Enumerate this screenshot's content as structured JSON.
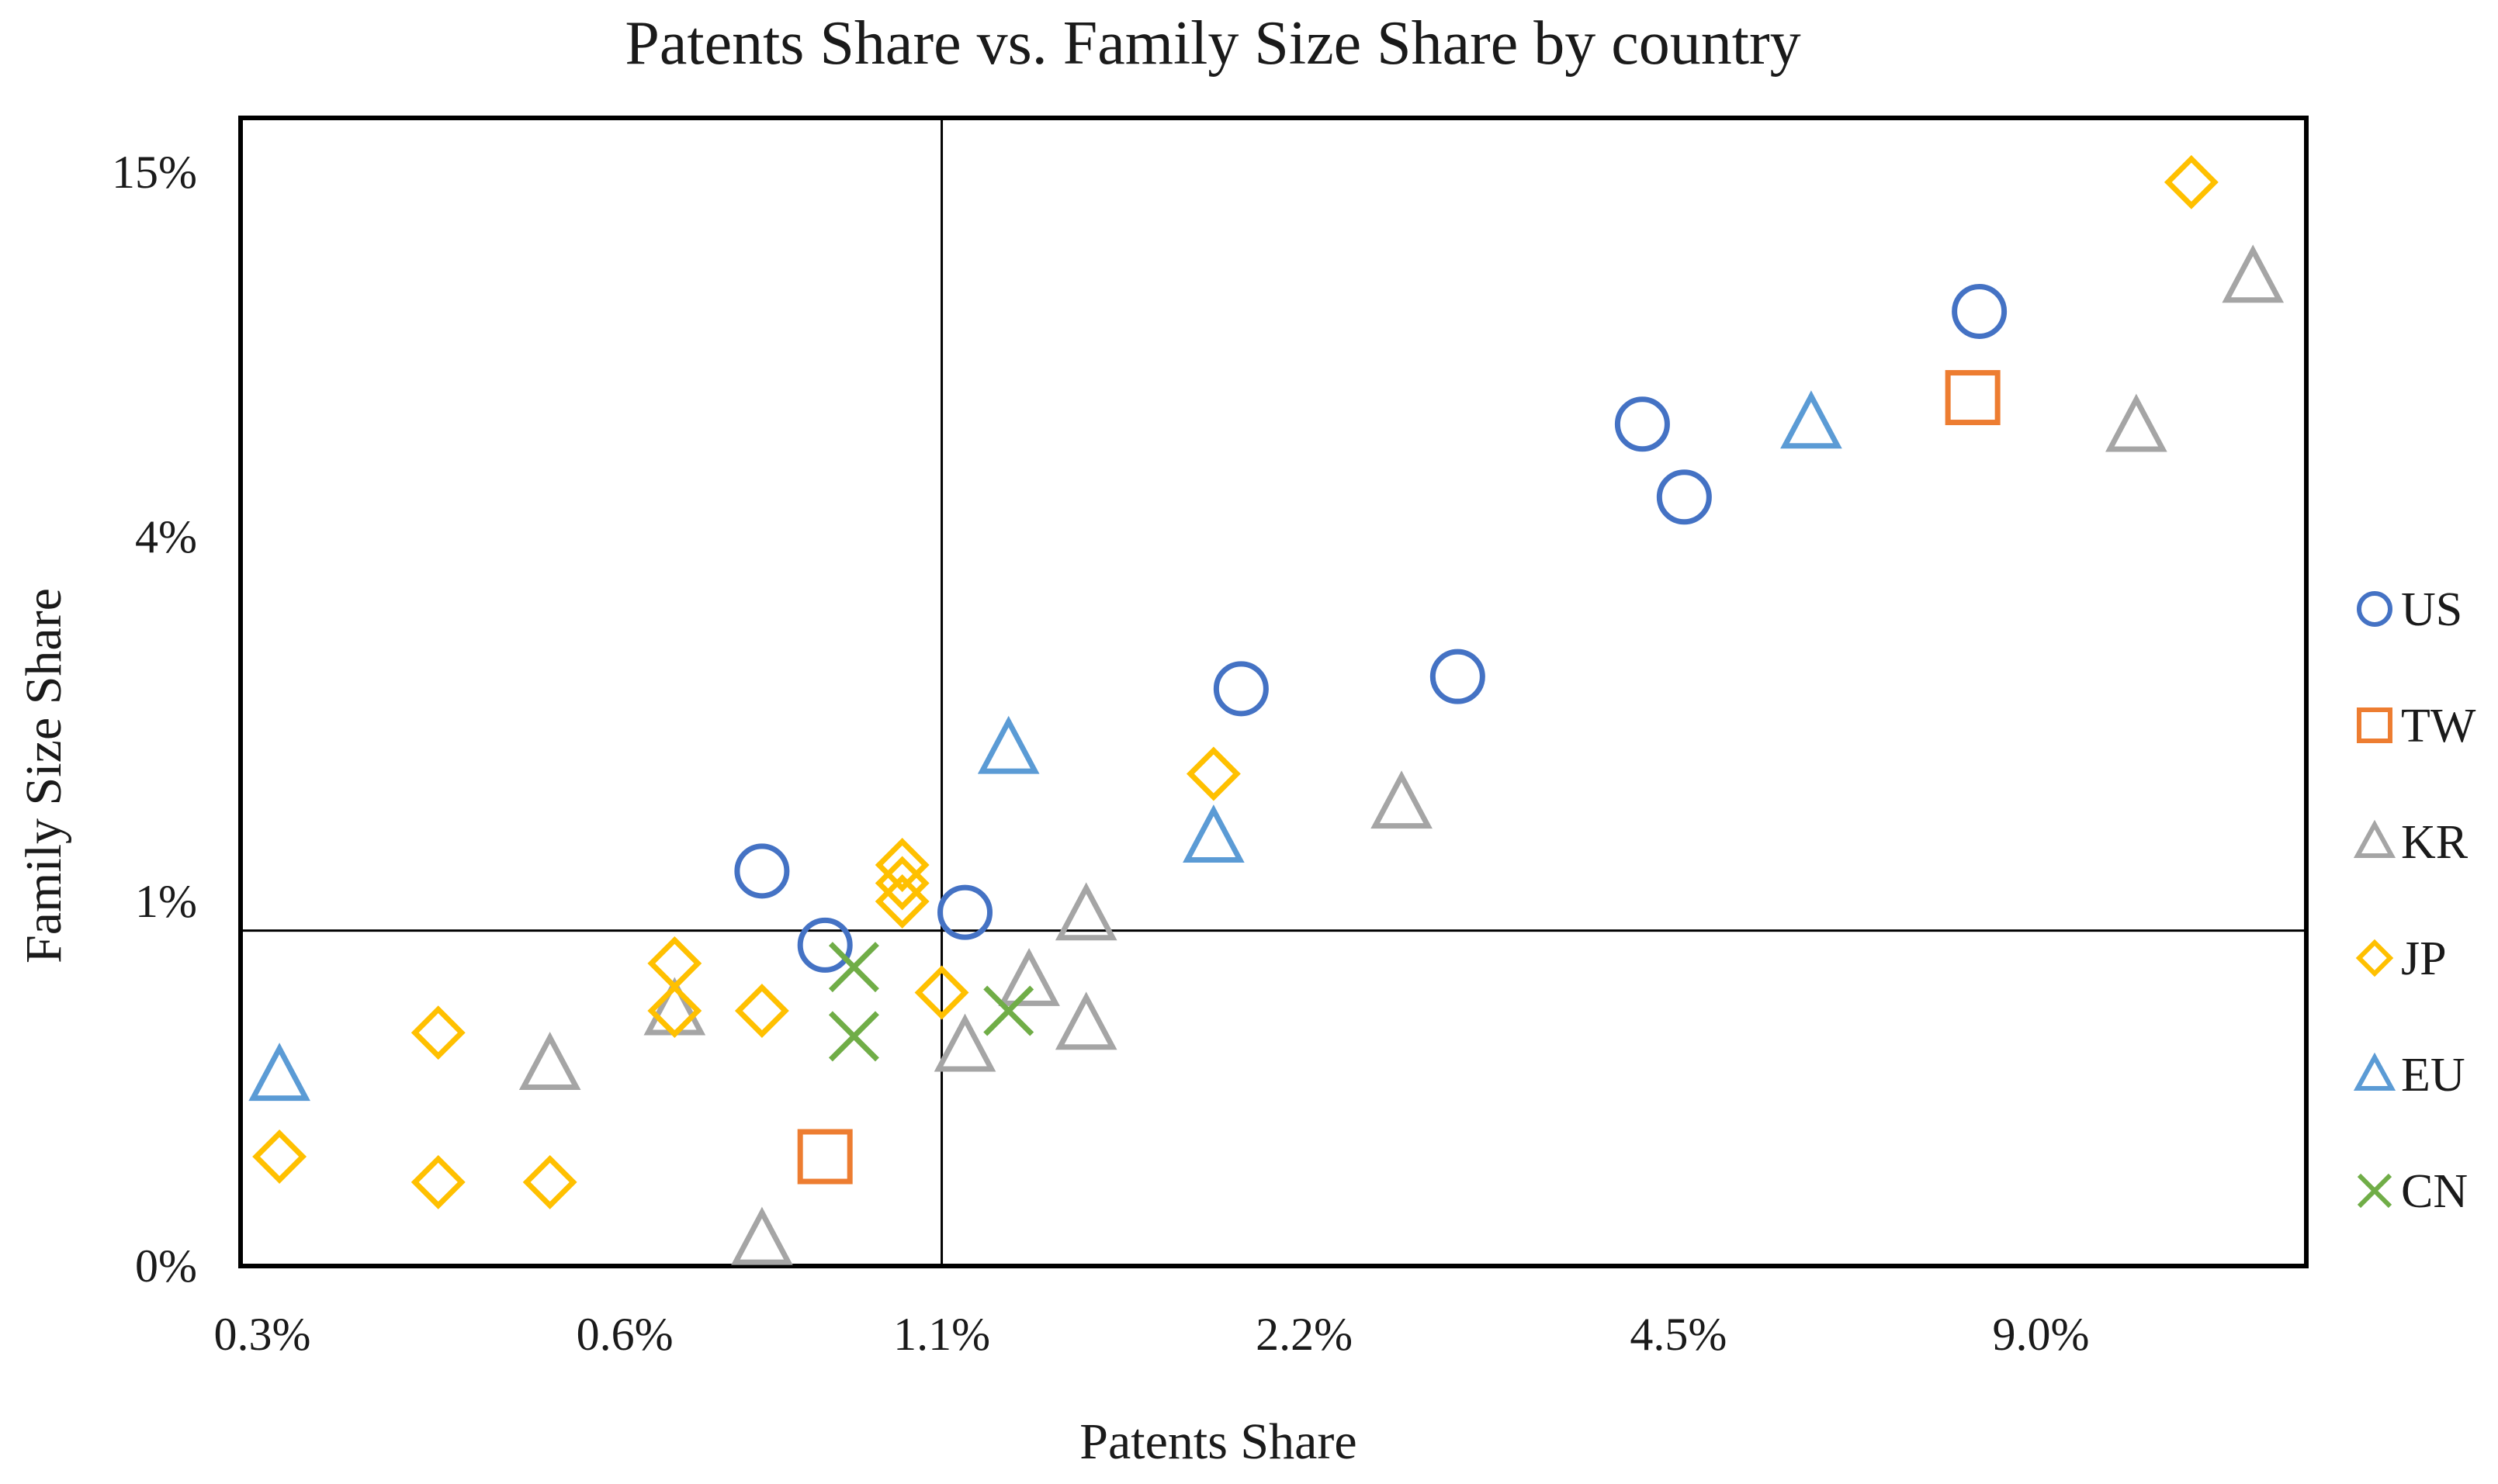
{
  "chart_data": {
    "type": "scatter",
    "title": "Patents Share vs. Family Size Share by country",
    "xlabel": "Patents Share",
    "ylabel": "Family Size Share",
    "x_scale": "log2",
    "xlim": [
      0.3,
      14.0
    ],
    "x_ticks": [
      0.3,
      0.6,
      1.1,
      2.2,
      4.5,
      9.0
    ],
    "x_tick_labels": [
      "0.3%",
      "0.6%",
      "1.1%",
      "2.2%",
      "4.5%",
      "9.0%"
    ],
    "y_ticks": [
      0,
      1,
      4,
      15
    ],
    "y_tick_labels": [
      "0%",
      "1%",
      "4%",
      "15%"
    ],
    "y_band_fractions": [
      0.5,
      0.75,
      1,
      0.25,
      0.5,
      0.75
    ],
    "reference_lines": {
      "x": 1.1,
      "y": 0.92
    },
    "legend_position": "right",
    "series": [
      {
        "name": "US",
        "marker": "circle",
        "color": "#4472C4",
        "points": [
          [
            0.78,
            1.25
          ],
          [
            0.88,
            0.88
          ],
          [
            1.15,
            0.97
          ],
          [
            1.95,
            2.75
          ],
          [
            2.95,
            2.85
          ],
          [
            4.2,
            7.4
          ],
          [
            4.55,
            5.2
          ],
          [
            8.0,
            10.8
          ]
        ]
      },
      {
        "name": "TW",
        "marker": "square",
        "color": "#ED7D31",
        "points": [
          [
            0.88,
            0.3
          ],
          [
            7.9,
            8.2
          ]
        ]
      },
      {
        "name": "KR",
        "marker": "triangle",
        "color": "#A5A5A5",
        "points": [
          [
            0.52,
            0.55
          ],
          [
            0.66,
            0.7
          ],
          [
            0.78,
            0.07
          ],
          [
            1.15,
            0.6
          ],
          [
            1.3,
            0.78
          ],
          [
            1.45,
            0.96
          ],
          [
            1.45,
            0.66
          ],
          [
            2.65,
            1.8
          ],
          [
            10.8,
            7.3
          ],
          [
            13.5,
            11.8
          ]
        ]
      },
      {
        "name": "JP",
        "marker": "diamond",
        "color": "#FFC000",
        "points": [
          [
            0.31,
            0.3
          ],
          [
            0.42,
            0.64
          ],
          [
            0.42,
            0.23
          ],
          [
            0.52,
            0.23
          ],
          [
            0.66,
            0.83
          ],
          [
            0.66,
            0.7
          ],
          [
            0.78,
            0.7
          ],
          [
            1.02,
            1.3
          ],
          [
            1.02,
            1.15
          ],
          [
            1.02,
            1.0
          ],
          [
            1.1,
            0.75
          ],
          [
            1.85,
            2.05
          ],
          [
            12.0,
            14.7
          ]
        ]
      },
      {
        "name": "EU",
        "marker": "triangle",
        "color": "#5B9BD5",
        "points": [
          [
            0.31,
            0.52
          ],
          [
            1.25,
            2.25
          ],
          [
            1.85,
            1.52
          ],
          [
            5.8,
            7.4
          ]
        ]
      },
      {
        "name": "CN",
        "marker": "x",
        "color": "#70AD47",
        "points": [
          [
            0.93,
            0.82
          ],
          [
            0.93,
            0.63
          ],
          [
            1.25,
            0.7
          ]
        ]
      }
    ]
  }
}
